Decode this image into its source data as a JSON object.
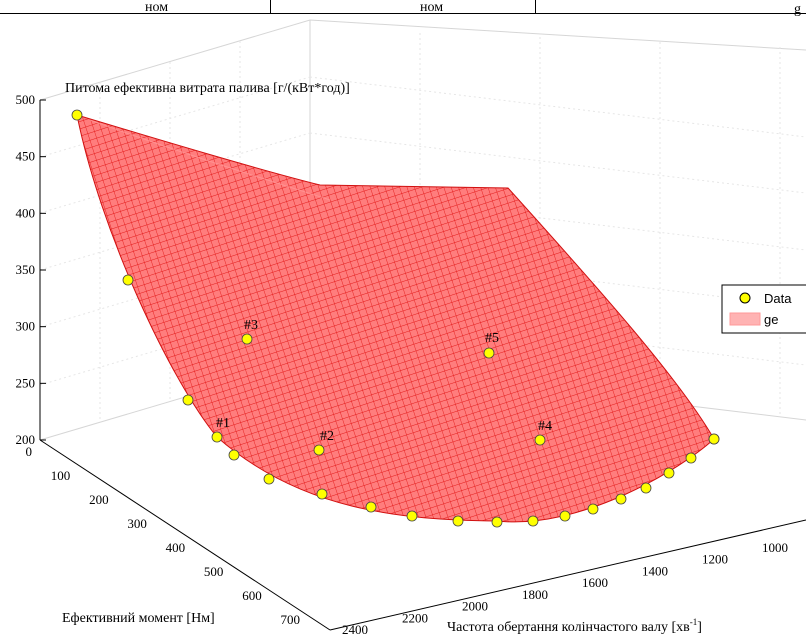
{
  "top_strip": {
    "cells": [
      "ном",
      "ном",
      "g"
    ]
  },
  "chart_data": {
    "type": "surface",
    "zlabel": "Питома ефективна витрата палива [г/(кВт*год)]",
    "ylabel": "Ефективний момент [Нм]",
    "xlabel": "Частота обертання колінчастого валу [хв",
    "xlabel_exponent": "-1",
    "xlabel_close": "]",
    "zlim": [
      200,
      500
    ],
    "z_ticks": [
      "500",
      "450",
      "400",
      "350",
      "300",
      "250",
      "200"
    ],
    "y_ticks": [
      "0",
      "100",
      "200",
      "300",
      "400",
      "500",
      "600",
      "700"
    ],
    "x_ticks": [
      "1000",
      "1200",
      "1400",
      "1600",
      "1800",
      "2000",
      "2200",
      "2400"
    ],
    "grid": true,
    "legend": {
      "position": "right",
      "entries": [
        {
          "label": "Data",
          "marker": "circle",
          "color": "#ffff00"
        },
        {
          "label": "ge",
          "marker": "patch",
          "color": "#ffb3b3"
        }
      ]
    },
    "annotations": [
      "#1",
      "#2",
      "#3",
      "#4",
      "#5"
    ],
    "surface_color": "#ff7070",
    "mesh_color": "#ee2222",
    "marker_color": "#ffff00",
    "points": [
      {
        "y": 0,
        "x": 1000,
        "z": 490
      },
      {
        "y": 150,
        "x": 1000,
        "z": 345
      },
      {
        "y": 300,
        "x": 1050,
        "z": 238
      },
      {
        "y": 400,
        "x": 1100,
        "z": 215
      },
      {
        "y": 470,
        "x": 1150,
        "z": 205
      },
      {
        "y": 540,
        "x": 1200,
        "z": 200
      },
      {
        "y": 590,
        "x": 1300,
        "z": 200
      },
      {
        "y": 630,
        "x": 1400,
        "z": 200
      },
      {
        "y": 660,
        "x": 1500,
        "z": 200
      },
      {
        "y": 690,
        "x": 1600,
        "z": 200
      },
      {
        "y": 700,
        "x": 1700,
        "z": 200
      },
      {
        "y": 700,
        "x": 1800,
        "z": 200
      },
      {
        "y": 690,
        "x": 1900,
        "z": 200
      },
      {
        "y": 670,
        "x": 2000,
        "z": 200
      },
      {
        "y": 640,
        "x": 2100,
        "z": 205
      },
      {
        "y": 600,
        "x": 2200,
        "z": 212
      },
      {
        "y": 560,
        "x": 2300,
        "z": 225
      },
      {
        "y": 500,
        "x": 2350,
        "z": 235
      },
      {
        "y": 430,
        "x": 2400,
        "z": 245
      },
      {
        "y": 350,
        "x": 2400,
        "z": 255
      },
      {
        "y": 260,
        "x": 1300,
        "z": 290,
        "label": "#3"
      },
      {
        "y": 430,
        "x": 1500,
        "z": 200,
        "label": "#2"
      },
      {
        "y": 490,
        "x": 1800,
        "z": 250,
        "label": "#5"
      },
      {
        "y": 460,
        "x": 2050,
        "z": 200,
        "label": "#4"
      }
    ]
  }
}
